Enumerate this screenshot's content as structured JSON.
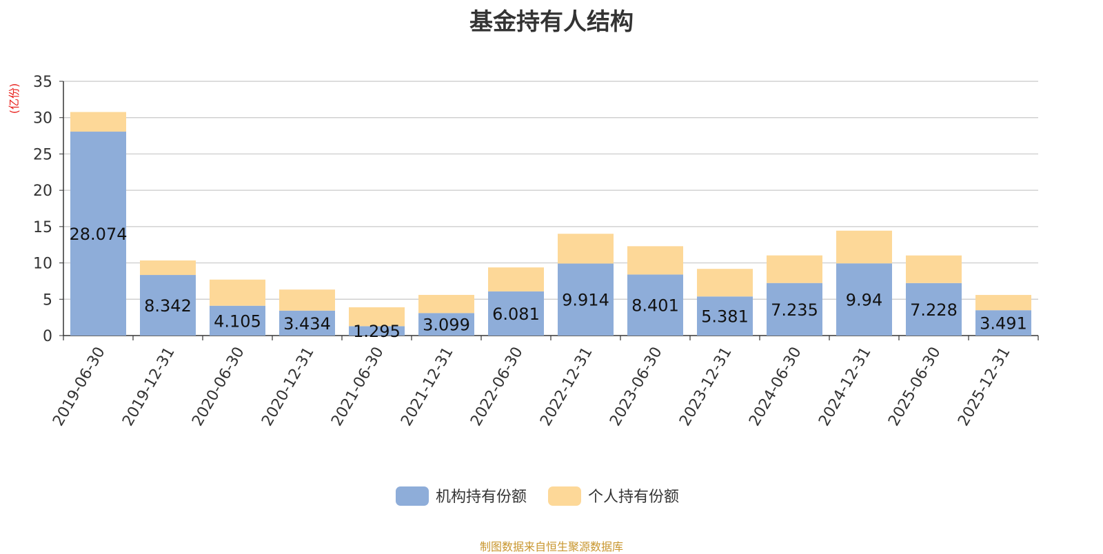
{
  "title": "基金持有人结构",
  "source_text": "制图数据来自恒生聚源数据库",
  "chart_data": {
    "type": "bar",
    "stacked": true,
    "title": "基金持有人结构",
    "ylabel": "(亿份)",
    "ylim": [
      0,
      35
    ],
    "yticks": [
      0,
      5,
      10,
      15,
      20,
      25,
      30,
      35
    ],
    "grid": true,
    "legend_position": "bottom",
    "categories": [
      "2019-06-30",
      "2019-12-31",
      "2020-06-30",
      "2020-12-31",
      "2021-06-30",
      "2021-12-31",
      "2022-06-30",
      "2022-12-31",
      "2023-06-30",
      "2023-12-31",
      "2024-06-30",
      "2024-12-31",
      "2025-06-30",
      "2025-12-31"
    ],
    "series": [
      {
        "name": "机构持有份额",
        "color": "#8eadd9",
        "values": [
          28.074,
          8.342,
          4.105,
          3.434,
          1.295,
          3.099,
          6.081,
          9.914,
          8.401,
          5.381,
          7.235,
          9.94,
          7.228,
          3.491
        ],
        "labels": [
          "28.074",
          "8.342",
          "4.105",
          "3.434",
          "1.295",
          "3.099",
          "6.081",
          "9.914",
          "8.401",
          "5.381",
          "7.235",
          "9.94",
          "7.228",
          "3.491"
        ]
      },
      {
        "name": "个人持有份额",
        "color": "#fdd898",
        "values": [
          2.7,
          2.0,
          3.6,
          2.9,
          2.6,
          2.5,
          3.3,
          4.1,
          3.9,
          3.8,
          3.8,
          4.5,
          3.8,
          2.1
        ]
      }
    ]
  }
}
